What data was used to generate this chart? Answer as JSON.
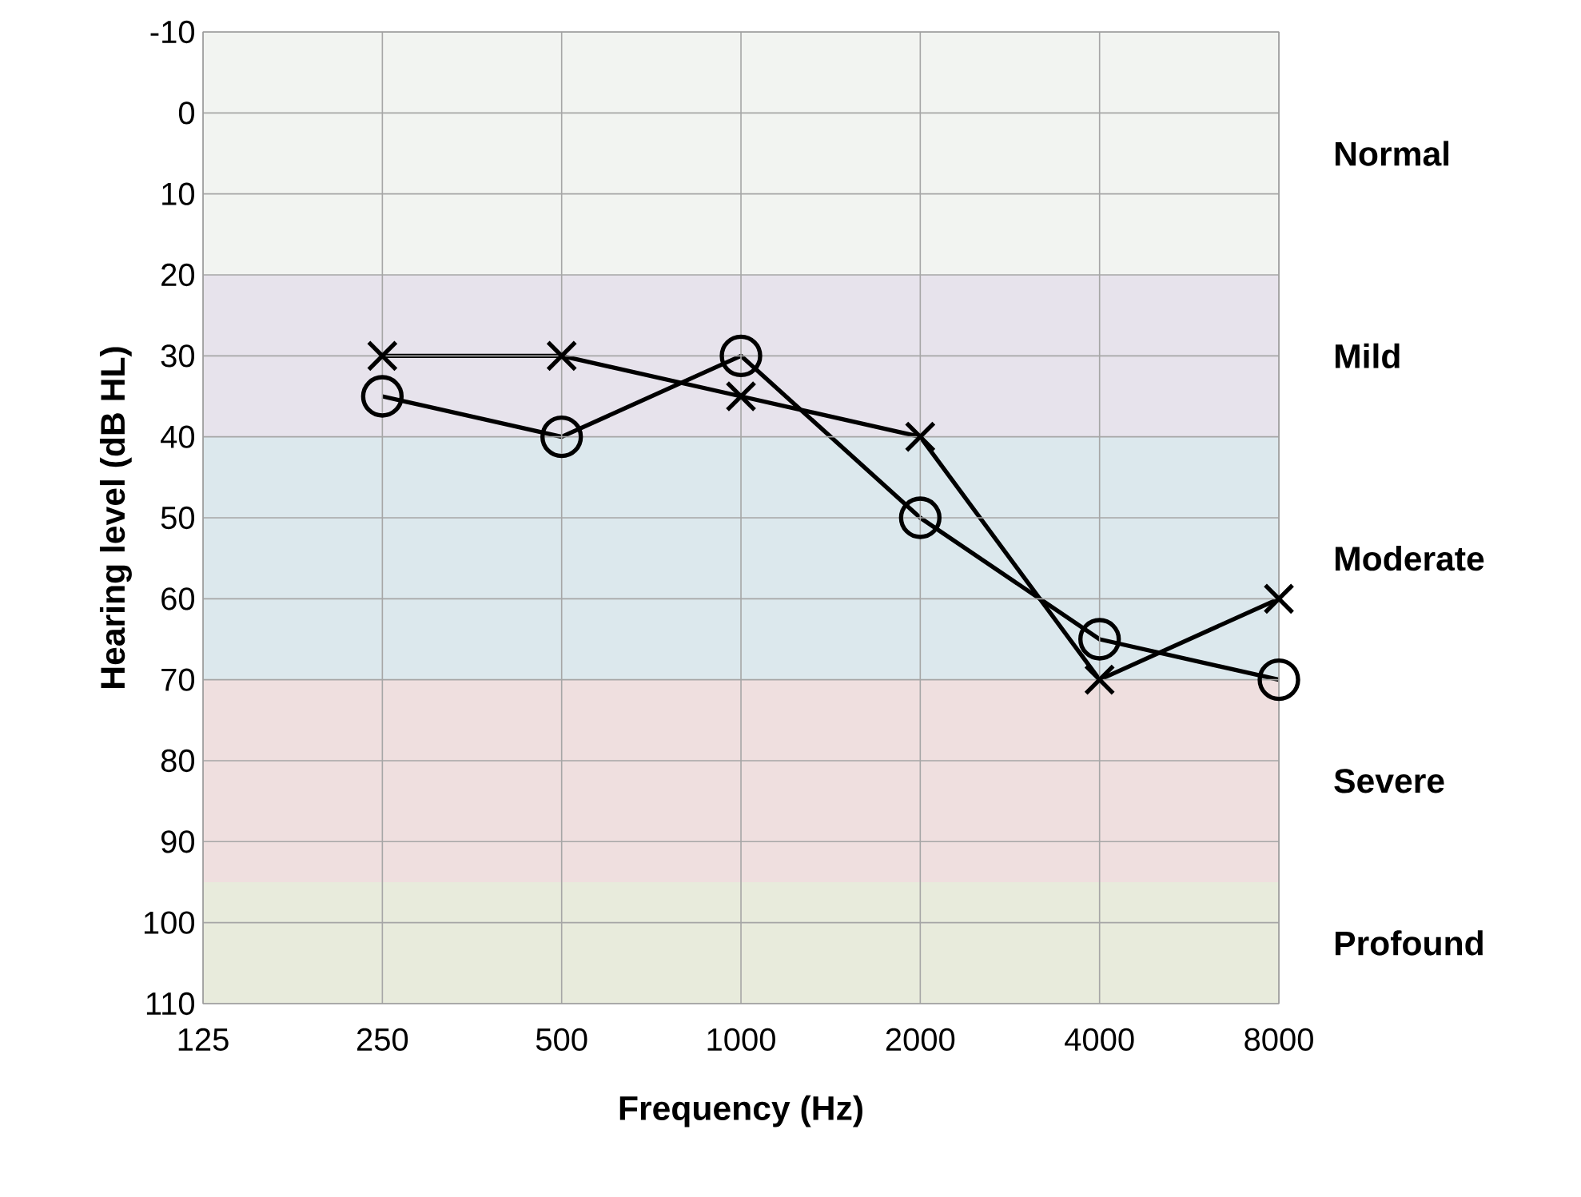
{
  "chart_data": {
    "type": "line",
    "xlabel": "Frequency (Hz)",
    "ylabel": "Hearing level (dB HL)",
    "log": "x",
    "xlim": [
      125,
      8000
    ],
    "xticks": [
      125,
      250,
      500,
      1000,
      2000,
      4000,
      8000
    ],
    "ylim": [
      110,
      -10
    ],
    "yticks": [
      -10,
      0,
      10,
      20,
      30,
      40,
      50,
      60,
      70,
      80,
      90,
      100,
      110
    ],
    "grid": true,
    "x": [
      250,
      500,
      1000,
      2000,
      4000,
      8000
    ],
    "series": [
      {
        "color": "#000000",
        "marker": "cross",
        "values": [
          30,
          30,
          35,
          40,
          70,
          60
        ]
      },
      {
        "color": "#000000",
        "marker": "circle",
        "values": [
          35,
          40,
          30,
          50,
          65,
          70
        ]
      }
    ],
    "bands": [
      {
        "axis": "y",
        "from": -10,
        "to": 20,
        "label": "Normal",
        "color": "#f2f4f1"
      },
      {
        "axis": "y",
        "from": 20,
        "to": 40,
        "label": "Mild",
        "color": "#e7e3ec"
      },
      {
        "axis": "y",
        "from": 40,
        "to": 70,
        "label": "Moderate",
        "color": "#dce8ed"
      },
      {
        "axis": "y",
        "from": 70,
        "to": 95,
        "label": "Severe",
        "color": "#efdfdf"
      },
      {
        "axis": "y",
        "from": 95,
        "to": 110,
        "label": "Profound",
        "color": "#e8ebdc"
      }
    ]
  }
}
